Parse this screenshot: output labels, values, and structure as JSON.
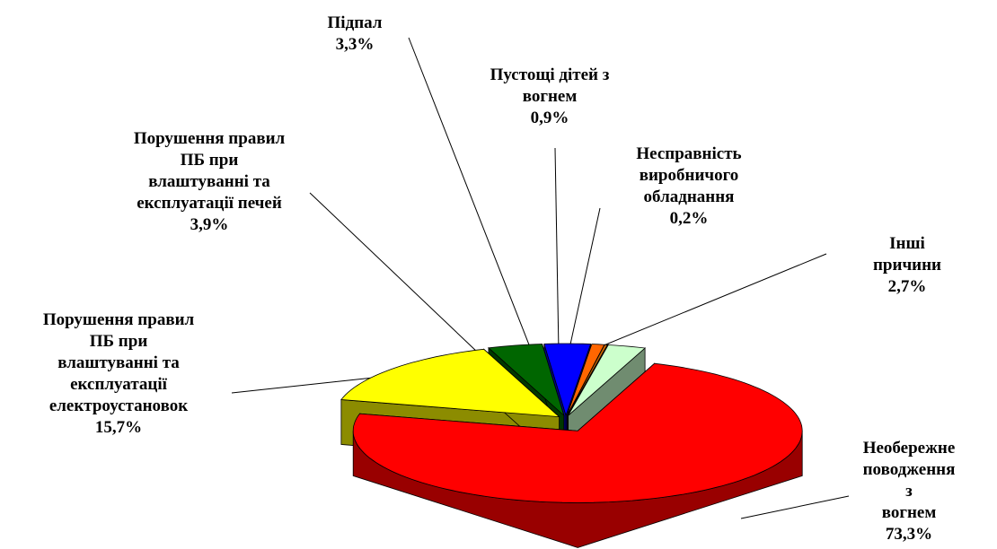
{
  "chart_data": {
    "type": "pie",
    "categories": [
      "Необережне\nповодження з\nвогнем",
      "Порушення правил\nПБ при\nвлаштуванні та\nексплуатації\nелектроустановок",
      "Порушення правил\nПБ при\nвлаштуванні та\nексплуатації печей",
      "Підпал",
      "Пустощі дітей з\nвогнем",
      "Несправність\nвиробничого\nобладнання",
      "Інші причини"
    ],
    "values": [
      73.3,
      15.7,
      3.9,
      3.3,
      0.9,
      0.2,
      2.7
    ],
    "value_labels": [
      "73,3%",
      "15,7%",
      "3,9%",
      "3,3%",
      "0,9%",
      "0,2%",
      "2,7%"
    ],
    "colors": [
      "#ff0000",
      "#ffff00",
      "#006600",
      "#0000ff",
      "#ff6600",
      "#cc6600",
      "#ccffcc"
    ]
  }
}
